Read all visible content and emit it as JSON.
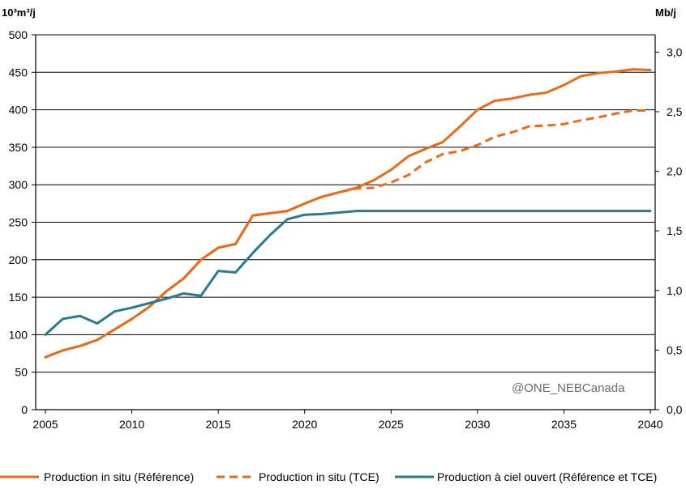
{
  "chart_data": {
    "type": "line",
    "left_axis_unit": "10³m³/j",
    "right_axis_unit": "Mb/j",
    "xlim": [
      2005,
      2040
    ],
    "ylim_left": [
      0,
      500
    ],
    "ylim_right": [
      0,
      3.145
    ],
    "x_ticks": [
      "2005",
      "2010",
      "2015",
      "2020",
      "2025",
      "2030",
      "2035",
      "2040"
    ],
    "y_ticks_left": [
      "0",
      "50",
      "100",
      "150",
      "200",
      "250",
      "300",
      "350",
      "400",
      "450",
      "500"
    ],
    "y_ticks_right": [
      "0,0",
      "0,5",
      "1,0",
      "1,5",
      "2,0",
      "2,5",
      "3,0"
    ],
    "watermark": "@ONE_NEBCanada",
    "colors": {
      "orange": "#e46c1e",
      "teal": "#2a7b8a",
      "grid": "#000000"
    },
    "series": [
      {
        "name": "Production in situ (Référence)",
        "color": "#e46c1e",
        "dash": "solid",
        "x": [
          2005,
          2006,
          2007,
          2008,
          2009,
          2010,
          2011,
          2012,
          2013,
          2014,
          2015,
          2016,
          2017,
          2018,
          2019,
          2020,
          2021,
          2022,
          2023,
          2024,
          2025,
          2026,
          2027,
          2028,
          2029,
          2030,
          2031,
          2032,
          2033,
          2034,
          2035,
          2036,
          2037,
          2038,
          2039,
          2040
        ],
        "y": [
          70,
          79,
          85,
          93,
          107,
          121,
          137,
          158,
          175,
          200,
          216,
          221,
          259,
          262,
          265,
          275,
          284,
          290,
          296,
          306,
          320,
          338,
          348,
          357,
          378,
          400,
          412,
          415,
          420,
          423,
          433,
          445,
          449,
          451,
          454,
          453
        ]
      },
      {
        "name": "Production in situ (TCE)",
        "color": "#e46c1e",
        "dash": "dashed",
        "x": [
          2005,
          2006,
          2007,
          2008,
          2009,
          2010,
          2011,
          2012,
          2013,
          2014,
          2015,
          2016,
          2017,
          2018,
          2019,
          2020,
          2021,
          2022,
          2023,
          2024,
          2025,
          2026,
          2027,
          2028,
          2029,
          2030,
          2031,
          2032,
          2033,
          2034,
          2035,
          2036,
          2037,
          2038,
          2039,
          2040
        ],
        "y": [
          70,
          79,
          85,
          93,
          107,
          121,
          137,
          158,
          175,
          200,
          216,
          221,
          259,
          262,
          265,
          275,
          284,
          290,
          295,
          296,
          303,
          313,
          330,
          341,
          345,
          353,
          364,
          370,
          378,
          379,
          381,
          386,
          390,
          395,
          399,
          399
        ]
      },
      {
        "name": "Production à ciel ouvert (Référence et TCE)",
        "color": "#2a7b8a",
        "dash": "solid",
        "x": [
          2005,
          2006,
          2007,
          2008,
          2009,
          2010,
          2011,
          2012,
          2013,
          2014,
          2015,
          2016,
          2017,
          2018,
          2019,
          2020,
          2021,
          2022,
          2023,
          2024,
          2025,
          2026,
          2027,
          2028,
          2029,
          2030,
          2031,
          2032,
          2033,
          2034,
          2035,
          2036,
          2037,
          2038,
          2039,
          2040
        ],
        "y": [
          100,
          121,
          125,
          115,
          131,
          136,
          142,
          148,
          155,
          152,
          185,
          183,
          209,
          233,
          254,
          260,
          261,
          263,
          265,
          265,
          265,
          265,
          265,
          265,
          265,
          265,
          265,
          265,
          265,
          265,
          265,
          265,
          265,
          265,
          265,
          265
        ]
      }
    ],
    "grid": true,
    "legend_position": "bottom"
  }
}
